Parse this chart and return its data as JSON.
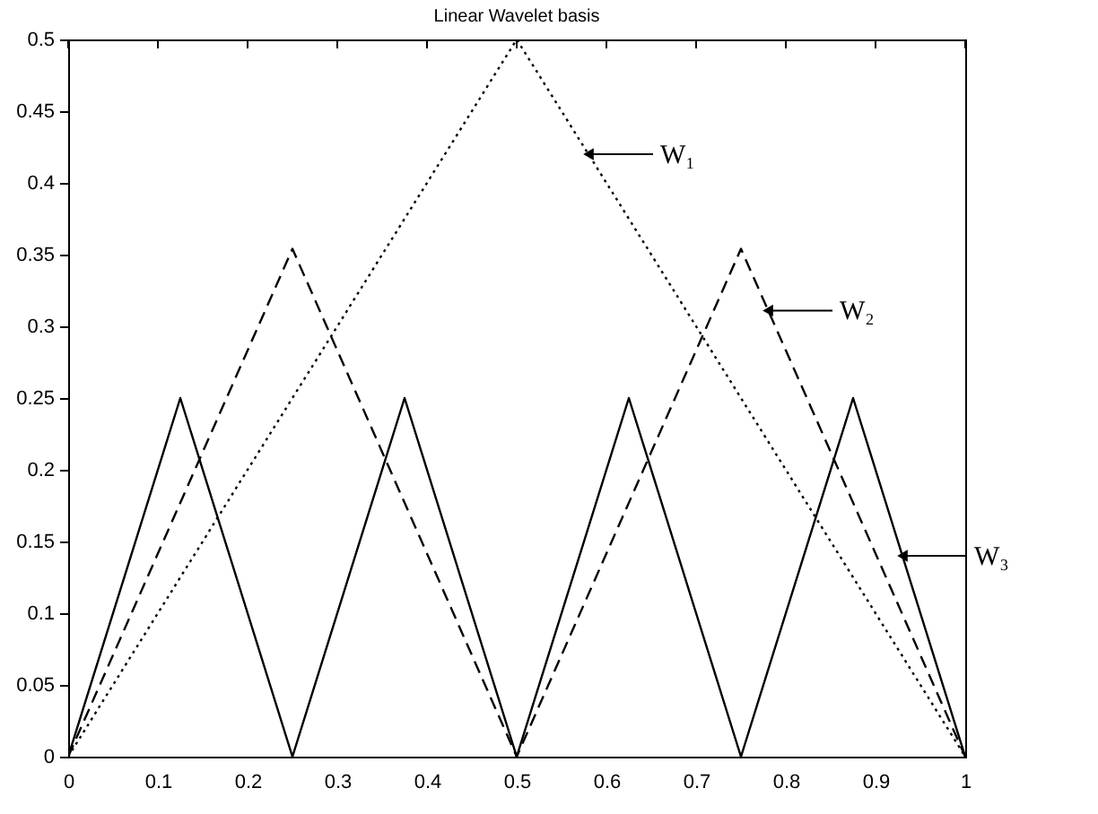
{
  "chart_data": {
    "type": "line",
    "title": "Linear Wavelet basis",
    "series": [
      {
        "color": "#000000",
        "line_style": "dotted",
        "x": [
          0,
          0.5,
          1
        ],
        "values": [
          0,
          0.5,
          0
        ]
      },
      {
        "color": "#000000",
        "line_style": "dashed",
        "x": [
          0,
          0.25,
          0.5,
          0.75,
          1
        ],
        "values": [
          0,
          0.354,
          0,
          0.354,
          0
        ]
      },
      {
        "color": "#000000",
        "line_style": "solid",
        "x": [
          0,
          0.125,
          0.25,
          0.375,
          0.5,
          0.625,
          0.75,
          0.875,
          1
        ],
        "values": [
          0,
          0.25,
          0,
          0.25,
          0,
          0.25,
          0,
          0.25,
          0
        ]
      }
    ],
    "xlim": [
      0,
      1
    ],
    "xticks": [
      0,
      0.1,
      0.2,
      0.3,
      0.4,
      0.5,
      0.6,
      0.7,
      0.8,
      0.9,
      1
    ],
    "ylim": [
      0,
      0.5
    ],
    "yticks": [
      0,
      0.05,
      0.1,
      0.15,
      0.2,
      0.25,
      0.3,
      0.35,
      0.4,
      0.45,
      0.5
    ],
    "annotations": [
      {
        "text": "W₁",
        "x": 0.58,
        "y": 0.42
      },
      {
        "text": "W₂",
        "x": 0.78,
        "y": 0.311
      },
      {
        "text": "W₃",
        "x": 0.93,
        "y": 0.14
      }
    ],
    "grid": false,
    "marker": "none"
  }
}
